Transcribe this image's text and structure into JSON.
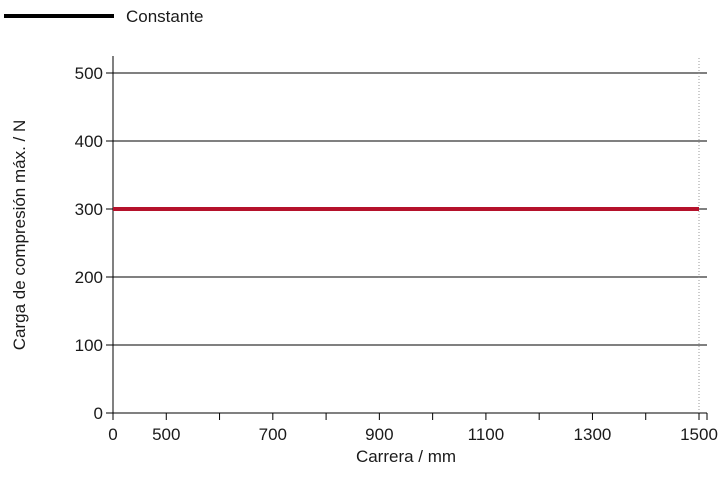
{
  "chart_data": {
    "type": "line",
    "title": "",
    "xlabel": "Carrera / mm",
    "ylabel": "Carga de compresión máx. / N",
    "x_ticks": [
      "0",
      "500",
      "",
      "700",
      "",
      "900",
      "",
      "1100",
      "",
      "1300",
      "",
      "1500"
    ],
    "y_ticks": [
      0,
      100,
      200,
      300,
      400,
      500
    ],
    "xlim": [
      0,
      1500
    ],
    "ylim": [
      0,
      500
    ],
    "grid": "horizontal",
    "legend_position": "top-left",
    "legend": [
      {
        "label": "Constante",
        "color": "#000000"
      }
    ],
    "series": [
      {
        "name": "Constante",
        "x": [
          0,
          1500
        ],
        "values": [
          300,
          300
        ],
        "color": "#b5122b"
      }
    ]
  }
}
